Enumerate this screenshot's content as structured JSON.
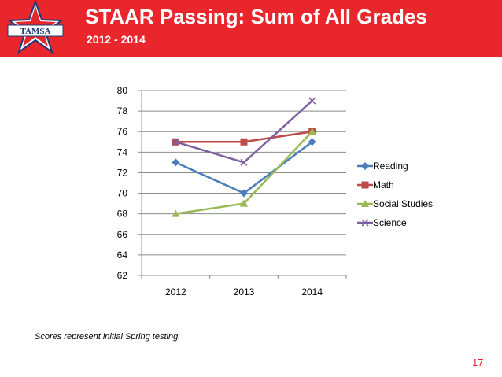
{
  "header": {
    "title": "STAAR Passing: Sum of All Grades",
    "subtitle": "2012 - 2014",
    "logo_text": "TAMSA",
    "banner_color": "#e8262b"
  },
  "footer": {
    "note": "Scores represent initial Spring testing.",
    "slide_number": "17"
  },
  "chart_data": {
    "type": "line",
    "title": "",
    "xlabel": "",
    "ylabel": "",
    "categories": [
      "2012",
      "2013",
      "2014"
    ],
    "ylim": [
      62,
      80
    ],
    "yticks": [
      62,
      64,
      66,
      68,
      70,
      72,
      74,
      76,
      78,
      80
    ],
    "grid": true,
    "legend_position": "right",
    "series": [
      {
        "name": "Reading",
        "values": [
          73,
          70,
          75
        ],
        "color": "#4a7ebb",
        "marker": "diamond"
      },
      {
        "name": "Math",
        "values": [
          75,
          75,
          76
        ],
        "color": "#be4b48",
        "marker": "square"
      },
      {
        "name": "Social Studies",
        "values": [
          68,
          69,
          76
        ],
        "color": "#98b954",
        "marker": "triangle"
      },
      {
        "name": "Science",
        "values": [
          75,
          73,
          79
        ],
        "color": "#7d60a0",
        "marker": "x"
      }
    ]
  }
}
